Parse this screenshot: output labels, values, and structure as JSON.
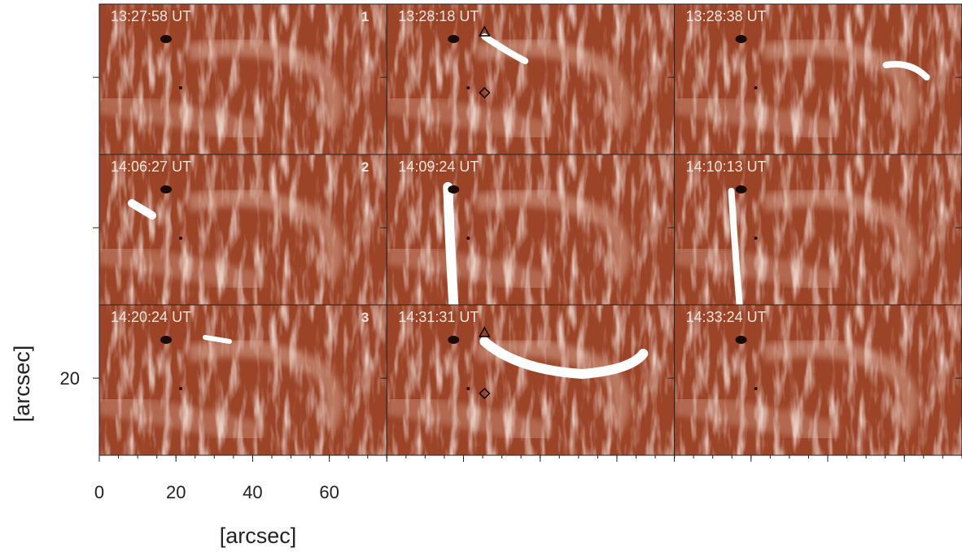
{
  "figure": {
    "panels": [
      {
        "time": "13:27:58 UT",
        "number": "1"
      },
      {
        "time": "13:28:18 UT"
      },
      {
        "time": "13:28:38 UT"
      },
      {
        "time": "14:06:27 UT",
        "number": "2"
      },
      {
        "time": "14:09:24 UT"
      },
      {
        "time": "14:10:13 UT"
      },
      {
        "time": "14:20:24 UT",
        "number": "3"
      },
      {
        "time": "14:31:31 UT"
      },
      {
        "time": "14:33:24 UT"
      }
    ],
    "x_axis": {
      "label": "[arcsec]",
      "xlim": [
        0,
        75
      ],
      "xticks": [
        0,
        20,
        40,
        60
      ]
    },
    "y_axis": {
      "label": "[arcsec]",
      "ylim": [
        0,
        39
      ],
      "yticks": [
        20
      ]
    }
  }
}
